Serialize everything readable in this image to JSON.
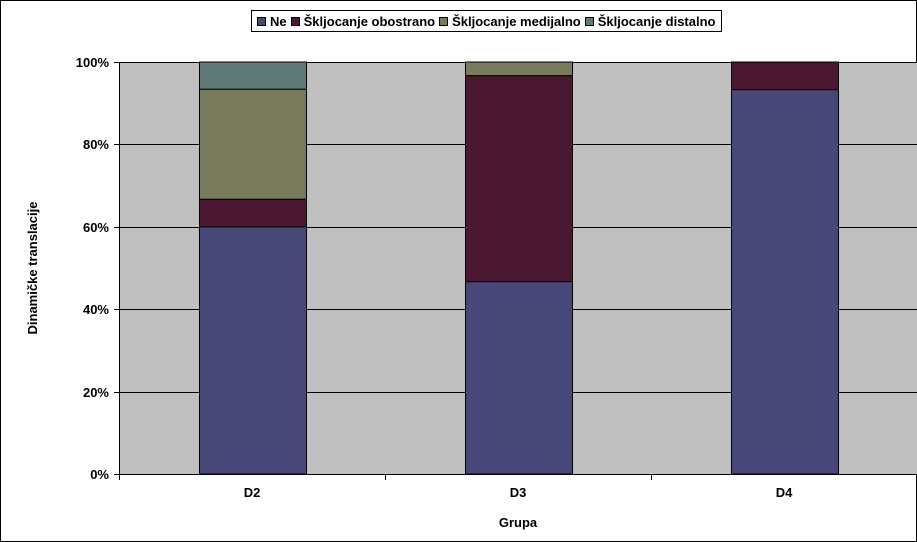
{
  "chart_data": {
    "type": "bar",
    "stacked": "percent",
    "categories": [
      "D2",
      "D3",
      "D4"
    ],
    "series": [
      {
        "name": "Ne",
        "color": "#474877",
        "values": [
          60,
          46.7,
          93.3
        ]
      },
      {
        "name": "Škljocanje obostrano",
        "color": "#4a1830",
        "values": [
          6.7,
          50,
          6.7
        ]
      },
      {
        "name": "Škljocanje medijalno",
        "color": "#787a5c",
        "values": [
          26.7,
          3.3,
          0
        ]
      },
      {
        "name": "Škljocanje distalno",
        "color": "#5f7878",
        "values": [
          6.6,
          0,
          0
        ]
      }
    ],
    "xlabel": "Grupa",
    "ylabel": "Dinamičke translacije",
    "ylim": [
      0,
      100
    ],
    "yticks": [
      "0%",
      "20%",
      "40%",
      "60%",
      "80%",
      "100%"
    ],
    "grid": true,
    "plot_background": "#c0c0c0",
    "legend_position": "top"
  }
}
